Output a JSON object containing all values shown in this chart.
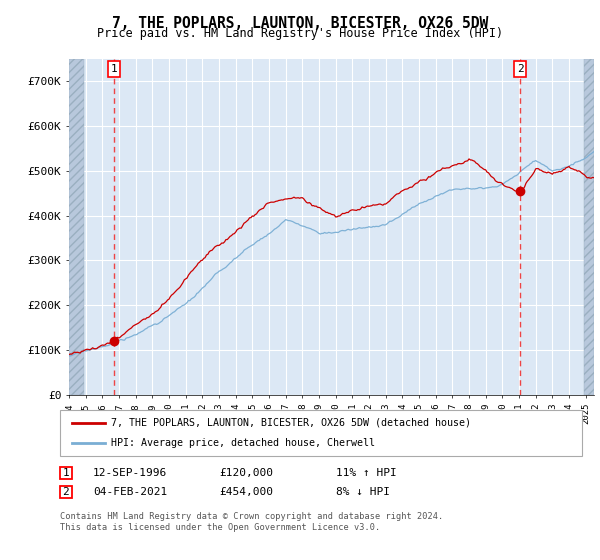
{
  "title": "7, THE POPLARS, LAUNTON, BICESTER, OX26 5DW",
  "subtitle": "Price paid vs. HM Land Registry's House Price Index (HPI)",
  "ylim": [
    0,
    750000
  ],
  "xlim_start": 1994.0,
  "xlim_end": 2025.5,
  "marker1_date": 1996.72,
  "marker1_price": 120000,
  "marker2_date": 2021.08,
  "marker2_price": 454000,
  "legend_line1": "7, THE POPLARS, LAUNTON, BICESTER, OX26 5DW (detached house)",
  "legend_line2": "HPI: Average price, detached house, Cherwell",
  "annotation1_date": "12-SEP-1996",
  "annotation1_price": "£120,000",
  "annotation1_hpi": "11% ↑ HPI",
  "annotation2_date": "04-FEB-2021",
  "annotation2_price": "£454,000",
  "annotation2_hpi": "8% ↓ HPI",
  "footer": "Contains HM Land Registry data © Crown copyright and database right 2024.\nThis data is licensed under the Open Government Licence v3.0.",
  "bg_color": "#dce8f5",
  "hatch_color": "#b8c8dc",
  "grid_color": "#c8d8ec",
  "line_red": "#cc0000",
  "line_blue": "#7aaed4",
  "vline_color": "#ee4444"
}
